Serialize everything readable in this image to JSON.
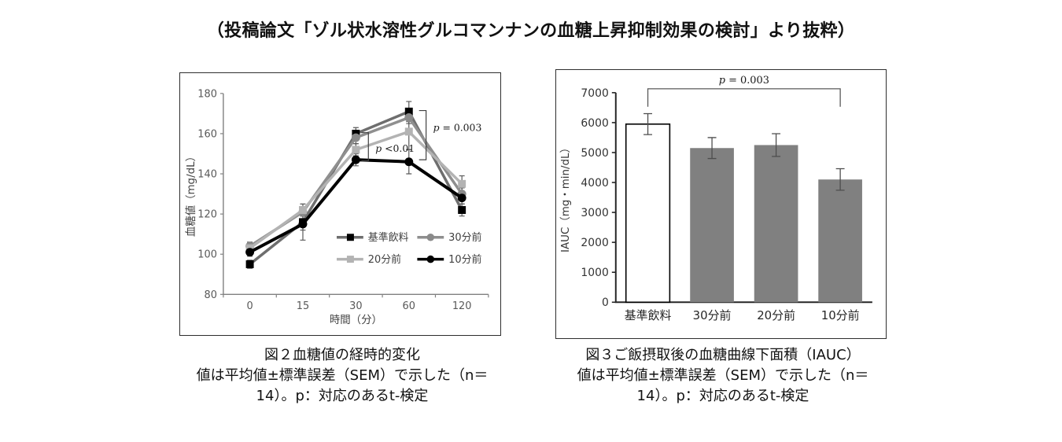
{
  "header": {
    "title": "（投稿論文「ゾル状水溶性グルコマンナンの血糖上昇抑制効果の検討」より抜粋）"
  },
  "colors": {
    "axis_line_chart": "#808080",
    "axis_bar_chart": "#262626",
    "tick_text": "#595959",
    "error_bar": "#595959",
    "bar_gray": "#808080",
    "bracket": "#404040"
  },
  "chart_data": [
    {
      "type": "line",
      "title": "",
      "xlabel": "時間（分）",
      "ylabel": "血糖値（mg/dL）",
      "ylim": [
        80,
        180
      ],
      "ytick_step": 20,
      "grid": false,
      "legend_position": "inside-lower-right 2x2",
      "categories": [
        "0",
        "15",
        "30",
        "60",
        "120"
      ],
      "series": [
        {
          "name": "基準飲料",
          "line_color": "#6e6e6e",
          "marker": "square",
          "marker_color": "#000000",
          "values": [
            95,
            116,
            160,
            171,
            122
          ],
          "sem": [
            2,
            4,
            3,
            5,
            3
          ]
        },
        {
          "name": "30分前",
          "line_color": "#8f8f8f",
          "marker": "circle",
          "marker_color": "#8a8a8a",
          "values": [
            104,
            121,
            158,
            168,
            130
          ],
          "sem": [
            2,
            2,
            3,
            3,
            3
          ]
        },
        {
          "name": "20分前",
          "line_color": "#b3b3b3",
          "marker": "square",
          "marker_color": "#b3b3b3",
          "values": [
            103,
            122,
            152,
            161,
            135
          ],
          "sem": [
            2,
            3,
            3,
            9,
            4
          ]
        },
        {
          "name": "10分前",
          "line_color": "#000000",
          "marker": "circle",
          "marker_color": "#000000",
          "values": [
            101,
            115,
            147,
            146,
            128
          ],
          "sem": [
            2,
            8,
            3,
            6,
            3
          ]
        }
      ],
      "annotations": [
        {
          "label": "p <0.01",
          "category_index": 2,
          "value_top": 160.5,
          "value_bottom": 146.5,
          "label_value": 152.5,
          "dx": 16
        },
        {
          "label": "p = 0.003",
          "category_index": 3,
          "value_top": 171.5,
          "value_bottom": 147,
          "label_value": 163,
          "dx": 22
        }
      ],
      "caption": [
        "図２血糖値の経時的変化",
        "値は平均値±標準誤差（SEM）で示した（n＝",
        "14）。p：対応のあるt-検定"
      ]
    },
    {
      "type": "bar",
      "title": "",
      "xlabel": "",
      "ylabel": "IAUC（mg・min/dL）",
      "ylim": [
        0,
        7000
      ],
      "ytick_step": 1000,
      "grid": false,
      "categories": [
        "基準飲料",
        "30分前",
        "20分前",
        "10分前"
      ],
      "values": [
        5950,
        5150,
        5250,
        4100
      ],
      "sem": [
        350,
        350,
        380,
        360
      ],
      "bar_fill": [
        "#ffffff",
        "#808080",
        "#808080",
        "#808080"
      ],
      "bar_stroke": [
        "#000000",
        "none",
        "none",
        "none"
      ],
      "annotation": {
        "label": "p = 0.003",
        "from_index": 0,
        "to_index": 3
      },
      "caption": [
        "図３ご飯摂取後の血糖曲線下面積（IAUC）",
        "値は平均値±標準誤差（SEM）で示した（n＝",
        "14）。p：対応のあるt-検定"
      ]
    }
  ]
}
